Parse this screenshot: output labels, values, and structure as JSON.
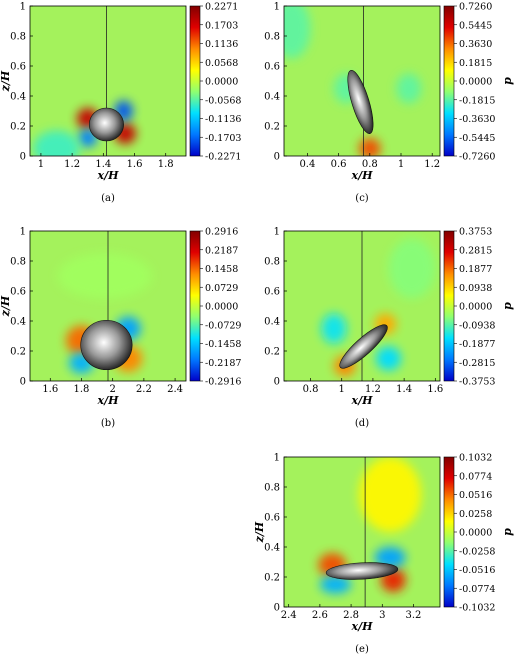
{
  "colormap": {
    "stops": [
      "#0000c8",
      "#0078ff",
      "#00e0ff",
      "#90ff70",
      "#ffff00",
      "#ff8c00",
      "#e00000",
      "#820000"
    ],
    "field_base": "#a4f25c",
    "field_cool": "#7ee8a8",
    "line": "#222222"
  },
  "panels": [
    {
      "id": "a",
      "caption": "(a)",
      "xlabel": "x/H",
      "ylabel": "z/H",
      "cbar_label": "",
      "xticks": [
        "1",
        "1.2",
        "1.4",
        "1.6",
        "1.8"
      ],
      "xtick_vals": [
        1,
        1.2,
        1.4,
        1.6,
        1.8
      ],
      "xlim": [
        0.93,
        1.93
      ],
      "yticks": [
        "0",
        "0.2",
        "0.4",
        "0.6",
        "0.8",
        "1"
      ],
      "ylim": [
        0,
        1
      ],
      "cbar_ticks": [
        "0.2271",
        "0.1703",
        "0.1136",
        "0.0568",
        "0.0000",
        "-0.0568",
        "-0.1136",
        "-0.1703",
        "-0.2271"
      ],
      "divider_x": 1.42,
      "particle": {
        "x": 1.42,
        "z": 0.21,
        "rx": 0.11,
        "rz": 0.11,
        "angle": 0
      },
      "field": [
        {
          "x": 1.3,
          "z": 0.25,
          "rx": 0.07,
          "rz": 0.07,
          "c": 0.9
        },
        {
          "x": 1.54,
          "z": 0.15,
          "rx": 0.07,
          "rz": 0.07,
          "c": 0.9
        },
        {
          "x": 1.53,
          "z": 0.3,
          "rx": 0.06,
          "rz": 0.07,
          "c": 0.1
        },
        {
          "x": 1.3,
          "z": 0.12,
          "rx": 0.06,
          "rz": 0.06,
          "c": 0.15
        },
        {
          "x": 1.1,
          "z": 0.05,
          "rx": 0.15,
          "rz": 0.12,
          "c": 0.35
        }
      ]
    },
    {
      "id": "c",
      "caption": "(c)",
      "xlabel": "x/H",
      "ylabel": "",
      "cbar_label": "p",
      "xticks": [
        "0.4",
        "0.6",
        "0.8",
        "1",
        "1.2"
      ],
      "xtick_vals": [
        0.4,
        0.6,
        0.8,
        1.0,
        1.2
      ],
      "xlim": [
        0.25,
        1.25
      ],
      "yticks": [
        "0",
        "0.2",
        "0.4",
        "0.6",
        "0.8",
        "1"
      ],
      "ylim": [
        0,
        1
      ],
      "cbar_ticks": [
        "0.7260",
        "0.5445",
        "0.3630",
        "0.1815",
        "0.0000",
        "-0.1815",
        "-0.3630",
        "-0.5445",
        "-0.7260"
      ],
      "divider_x": 0.76,
      "particle": {
        "x": 0.74,
        "z": 0.36,
        "rx": 0.055,
        "rz": 0.22,
        "angle": -17
      },
      "field": [
        {
          "x": 0.8,
          "z": 0.05,
          "rx": 0.07,
          "rz": 0.07,
          "c": 0.78
        },
        {
          "x": 0.65,
          "z": 0.45,
          "rx": 0.08,
          "rz": 0.1,
          "c": 0.38
        },
        {
          "x": 0.3,
          "z": 0.85,
          "rx": 0.12,
          "rz": 0.2,
          "c": 0.38
        },
        {
          "x": 1.05,
          "z": 0.45,
          "rx": 0.08,
          "rz": 0.1,
          "c": 0.38
        }
      ]
    },
    {
      "id": "b",
      "caption": "(b)",
      "xlabel": "x/H",
      "ylabel": "z/H",
      "cbar_label": "",
      "xticks": [
        "1.6",
        "1.8",
        "2",
        "2.2",
        "2.4"
      ],
      "xtick_vals": [
        1.6,
        1.8,
        2.0,
        2.2,
        2.4
      ],
      "xlim": [
        1.47,
        2.47
      ],
      "yticks": [
        "0",
        "0.2",
        "0.4",
        "0.6",
        "0.8",
        "1"
      ],
      "ylim": [
        0,
        1
      ],
      "cbar_ticks": [
        "0.2916",
        "0.2187",
        "0.1458",
        "0.0729",
        "0.0000",
        "-0.0729",
        "-0.1458",
        "-0.2187",
        "-0.2916"
      ],
      "divider_x": 1.97,
      "particle": {
        "x": 1.96,
        "z": 0.24,
        "rx": 0.165,
        "rz": 0.165,
        "angle": 0
      },
      "field": [
        {
          "x": 1.8,
          "z": 0.27,
          "rx": 0.1,
          "rz": 0.1,
          "c": 0.75
        },
        {
          "x": 2.1,
          "z": 0.15,
          "rx": 0.09,
          "rz": 0.09,
          "c": 0.72
        },
        {
          "x": 2.1,
          "z": 0.35,
          "rx": 0.08,
          "rz": 0.08,
          "c": 0.2
        },
        {
          "x": 1.8,
          "z": 0.12,
          "rx": 0.08,
          "rz": 0.07,
          "c": 0.22
        },
        {
          "x": 1.95,
          "z": 0.7,
          "rx": 0.3,
          "rz": 0.15,
          "c": 0.45
        }
      ]
    },
    {
      "id": "d",
      "caption": "(d)",
      "xlabel": "x/H",
      "ylabel": "",
      "cbar_label": "p",
      "xticks": [
        "0.8",
        "1",
        "1.2",
        "1.4",
        "1.6"
      ],
      "xtick_vals": [
        0.8,
        1.0,
        1.2,
        1.4,
        1.6
      ],
      "xlim": [
        0.63,
        1.63
      ],
      "yticks": [
        "0",
        "0.2",
        "0.4",
        "0.6",
        "0.8",
        "1"
      ],
      "ylim": [
        0,
        1
      ],
      "cbar_ticks": [
        "0.3753",
        "0.2815",
        "0.1877",
        "0.0938",
        "0.0000",
        "-0.0938",
        "-0.1877",
        "-0.2815",
        "-0.3753"
      ],
      "divider_x": 1.13,
      "particle": {
        "x": 1.14,
        "z": 0.23,
        "rx": 0.2,
        "rz": 0.055,
        "angle": -42
      },
      "field": [
        {
          "x": 1.02,
          "z": 0.1,
          "rx": 0.07,
          "rz": 0.07,
          "c": 0.72
        },
        {
          "x": 1.28,
          "z": 0.38,
          "rx": 0.07,
          "rz": 0.07,
          "c": 0.68
        },
        {
          "x": 1.3,
          "z": 0.15,
          "rx": 0.08,
          "rz": 0.08,
          "c": 0.28
        },
        {
          "x": 0.95,
          "z": 0.35,
          "rx": 0.08,
          "rz": 0.1,
          "c": 0.3
        },
        {
          "x": 1.45,
          "z": 0.75,
          "rx": 0.15,
          "rz": 0.2,
          "c": 0.42
        }
      ]
    },
    {
      "id": "e",
      "caption": "(e)",
      "xlabel": "x/H",
      "ylabel": "z/H",
      "cbar_label": "p",
      "xticks": [
        "2.4",
        "2.6",
        "2.8",
        "3",
        "3.2"
      ],
      "xtick_vals": [
        2.4,
        2.6,
        2.8,
        3.0,
        3.2
      ],
      "xlim": [
        2.37,
        3.37
      ],
      "yticks": [
        "0",
        "0.2",
        "0.4",
        "0.6",
        "0.8",
        "1"
      ],
      "ylim": [
        0,
        1
      ],
      "cbar_ticks": [
        "0.1032",
        "0.0774",
        "0.0516",
        "0.0258",
        "0.0000",
        "-0.0258",
        "-0.0516",
        "-0.0774",
        "-0.1032"
      ],
      "divider_x": 2.89,
      "particle": {
        "x": 2.87,
        "z": 0.24,
        "rx": 0.23,
        "rz": 0.055,
        "angle": -3
      },
      "field": [
        {
          "x": 2.68,
          "z": 0.28,
          "rx": 0.09,
          "rz": 0.08,
          "c": 0.78
        },
        {
          "x": 3.07,
          "z": 0.18,
          "rx": 0.08,
          "rz": 0.08,
          "c": 0.82
        },
        {
          "x": 3.05,
          "z": 0.33,
          "rx": 0.1,
          "rz": 0.07,
          "c": 0.2
        },
        {
          "x": 2.7,
          "z": 0.15,
          "rx": 0.1,
          "rz": 0.06,
          "c": 0.22
        },
        {
          "x": 3.05,
          "z": 0.75,
          "rx": 0.2,
          "rz": 0.25,
          "c": 0.58
        }
      ]
    }
  ]
}
